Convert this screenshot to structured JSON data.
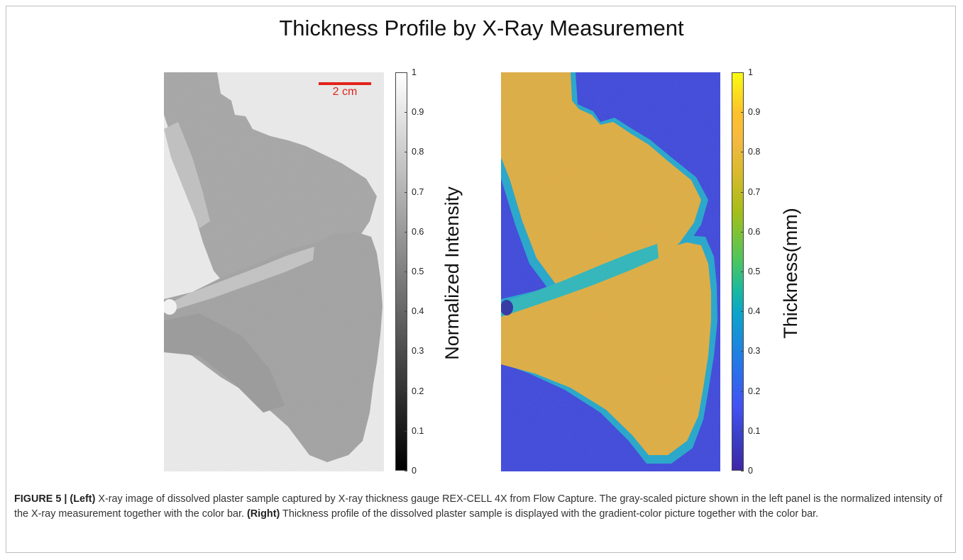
{
  "figure": {
    "title": "Thickness Profile by X-Ray Measurement",
    "scale_bar_label": "2 cm"
  },
  "left_panel": {
    "colorbar_label": "Normalized Intensity",
    "ticks": [
      "1",
      "0.9",
      "0.8",
      "0.7",
      "0.6",
      "0.5",
      "0.4",
      "0.3",
      "0.2",
      "0.1",
      "0"
    ]
  },
  "right_panel": {
    "colorbar_label": "Thickness(mm)",
    "ticks": [
      "1",
      "0.9",
      "0.8",
      "0.7",
      "0.6",
      "0.5",
      "0.4",
      "0.3",
      "0.2",
      "0.1",
      "0"
    ]
  },
  "caption": {
    "figure_label": "FIGURE 5 |",
    "left_label": "(Left)",
    "left_text": " X-ray image of dissolved plaster sample captured by X-ray thickness gauge REX-CELL 4X from Flow Capture. The gray-scaled picture shown in the left panel is the normalized intensity of the X-ray measurement together with the color bar. ",
    "right_label": "(Right)",
    "right_text": " Thickness profile of the dissolved plaster sample is displayed with the gradient-color picture together with the color bar."
  },
  "colors": {
    "scale_bar": "#e2231a",
    "right_background": "#3b44d6",
    "right_sample": "#e0ad38",
    "right_edge": "#1fa6c6",
    "left_background": "#ebebeb",
    "left_sample": "#9c9c9c"
  }
}
